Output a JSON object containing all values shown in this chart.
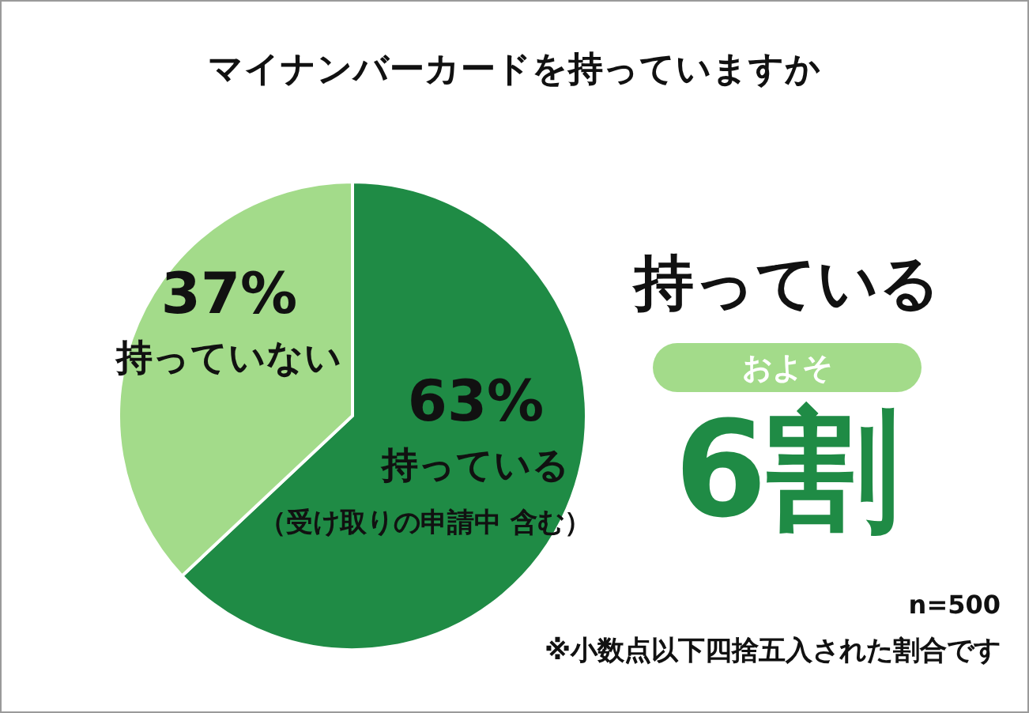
{
  "chart_data": {
    "type": "pie",
    "title": "マイナンバーカードを持っていますか",
    "categories": [
      "持っている",
      "持っていない"
    ],
    "values": [
      63,
      37
    ],
    "colors": [
      "#1f8b45",
      "#a3db8a"
    ],
    "value_labels": [
      "63%",
      "37%"
    ],
    "legend": false,
    "annotations": [
      "（受け取りの申請中 含む）",
      "持っている",
      "およそ",
      "6割",
      "n=500",
      "※小数点以下四捨五入された割合です"
    ]
  }
}
